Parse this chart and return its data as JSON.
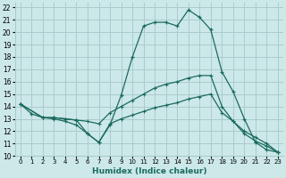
{
  "xlabel": "Humidex (Indice chaleur)",
  "bg_color": "#cce8e8",
  "grid_color": "#aacccc",
  "line_color": "#1a6b5e",
  "xlim": [
    -0.5,
    23.5
  ],
  "ylim": [
    10,
    22.4
  ],
  "xticks": [
    0,
    1,
    2,
    3,
    4,
    5,
    6,
    7,
    8,
    9,
    10,
    11,
    12,
    13,
    14,
    15,
    16,
    17,
    18,
    19,
    20,
    21,
    22,
    23
  ],
  "yticks": [
    10,
    11,
    12,
    13,
    14,
    15,
    16,
    17,
    18,
    19,
    20,
    21,
    22
  ],
  "line1_x": [
    0,
    1,
    2,
    3,
    4,
    5,
    6,
    7,
    8,
    9,
    10,
    11,
    12,
    13,
    14,
    15,
    16,
    17,
    18,
    19,
    20,
    21,
    22,
    23
  ],
  "line1_y": [
    14.2,
    13.4,
    13.1,
    13.1,
    13.0,
    12.9,
    11.8,
    11.1,
    12.5,
    14.9,
    18.0,
    20.5,
    20.8,
    20.8,
    20.5,
    21.8,
    21.2,
    20.2,
    16.8,
    15.2,
    13.0,
    11.1,
    10.5,
    10.3
  ],
  "line2_x": [
    0,
    2,
    3,
    4,
    5,
    6,
    7,
    8,
    9,
    10,
    11,
    12,
    13,
    14,
    15,
    16,
    17,
    18,
    19,
    20,
    21,
    22,
    23
  ],
  "line2_y": [
    14.2,
    13.1,
    13.1,
    13.0,
    12.9,
    12.8,
    12.6,
    13.5,
    14.0,
    14.5,
    15.0,
    15.5,
    15.8,
    16.0,
    16.3,
    16.5,
    16.5,
    14.0,
    12.8,
    11.8,
    11.2,
    10.8,
    10.3
  ],
  "line3_x": [
    0,
    2,
    3,
    4,
    5,
    6,
    7,
    8,
    9,
    10,
    11,
    12,
    13,
    14,
    15,
    16,
    17,
    18,
    19,
    20,
    21,
    22,
    23
  ],
  "line3_y": [
    14.2,
    13.1,
    13.0,
    12.8,
    12.5,
    11.8,
    11.1,
    12.6,
    13.0,
    13.3,
    13.6,
    13.9,
    14.1,
    14.3,
    14.6,
    14.8,
    15.0,
    13.5,
    12.8,
    12.0,
    11.5,
    11.0,
    10.3
  ]
}
